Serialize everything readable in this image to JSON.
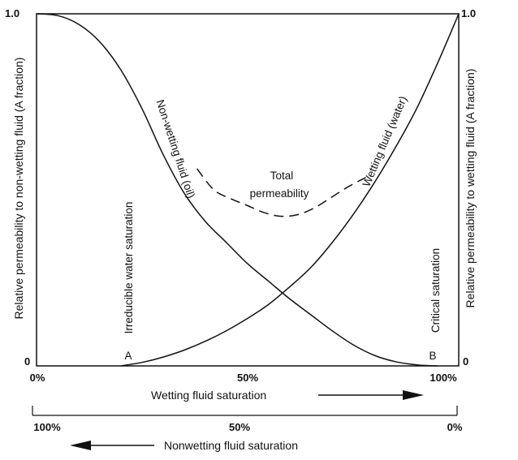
{
  "chart_data": {
    "type": "line",
    "xlabel": "Wetting fluid saturation",
    "xlabel_secondary": "Nonwetting fluid saturation",
    "ylabel_left": "Relative permeability to non-wetting fluid (A fraction)",
    "ylabel_right": "Relative permeability to wetting fluid (A fraction)",
    "xlim": [
      0,
      100
    ],
    "ylim": [
      0,
      1
    ],
    "grid": false,
    "x_ticks": [
      "0%",
      "50%",
      "100%"
    ],
    "x_ticks_secondary": [
      "100%",
      "50%",
      "0%"
    ],
    "y_ticks_left": [
      "0",
      "1.0"
    ],
    "y_ticks_right": [
      "0",
      "1.0"
    ],
    "series": [
      {
        "name": "Non-wetting fluid (oil)",
        "style": "solid",
        "x": [
          0,
          5,
          10,
          15,
          20,
          25,
          30,
          35,
          40,
          45,
          50,
          55,
          60,
          65,
          70,
          75,
          80,
          85,
          90,
          95
        ],
        "y": [
          1.0,
          0.995,
          0.97,
          0.92,
          0.84,
          0.73,
          0.6,
          0.49,
          0.41,
          0.35,
          0.29,
          0.24,
          0.19,
          0.145,
          0.1,
          0.06,
          0.03,
          0.012,
          0.003,
          0.0
        ]
      },
      {
        "name": "Wetting fluid (water)",
        "style": "solid",
        "x": [
          20,
          25,
          30,
          35,
          40,
          45,
          50,
          55,
          60,
          65,
          70,
          75,
          80,
          85,
          90,
          95,
          100
        ],
        "y": [
          0.0,
          0.01,
          0.025,
          0.045,
          0.07,
          0.1,
          0.135,
          0.175,
          0.225,
          0.28,
          0.35,
          0.43,
          0.52,
          0.62,
          0.73,
          0.86,
          1.0
        ]
      },
      {
        "name": "Total permeability",
        "style": "dashed",
        "x": [
          38,
          42,
          46,
          50,
          54,
          58,
          62,
          66,
          70,
          74,
          78
        ],
        "y": [
          0.56,
          0.5,
          0.475,
          0.455,
          0.435,
          0.425,
          0.43,
          0.45,
          0.48,
          0.51,
          0.535
        ]
      }
    ],
    "annotations": {
      "total_line1": "Total",
      "total_line2": "permeability",
      "irreducible": "Irreducible water saturation",
      "critical": "Critical saturation",
      "point_a": "A",
      "point_b": "B"
    }
  }
}
